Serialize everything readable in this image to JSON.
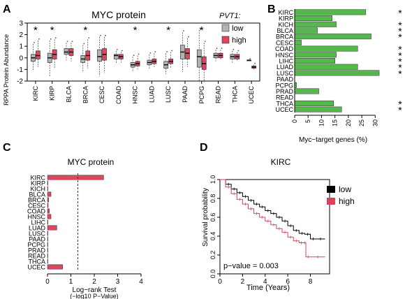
{
  "colors": {
    "low": "#b3b3b3",
    "high": "#d9485f",
    "green": "#55b84c",
    "black": "#000000",
    "red": "#d6455e"
  },
  "chart_data": [
    {
      "panel": "A",
      "type": "box",
      "title": "MYC protein",
      "ylabel": "RPPA Protein Abundance",
      "ylim": [
        -2,
        3
      ],
      "yticks": [
        "-2",
        "-1",
        "0",
        "1",
        "2",
        "3"
      ],
      "legend_title": "PVT1:",
      "legend": [
        "low",
        "high"
      ],
      "categories": [
        "KIRC",
        "KIRP",
        "BLCA",
        "BRCA",
        "CESC",
        "COAD",
        "HNSC",
        "LUAD",
        "LUSC",
        "PAAD",
        "PCPG",
        "READ",
        "THCA",
        "UCEC"
      ],
      "significant": [
        true,
        true,
        false,
        true,
        false,
        false,
        true,
        false,
        true,
        false,
        true,
        false,
        false,
        false
      ],
      "star": "*",
      "series": [
        {
          "name": "low",
          "median": [
            0.0,
            0.0,
            0.5,
            -0.1,
            0.1,
            0.2,
            -0.6,
            -0.4,
            -0.6,
            0.5,
            0.1,
            0.2,
            0.1,
            -0.2
          ],
          "q1": [
            -0.3,
            -0.4,
            0.3,
            -0.4,
            -0.3,
            -0.1,
            -0.8,
            -0.6,
            -0.9,
            -0.1,
            -0.8,
            0.0,
            -0.1,
            -0.2
          ],
          "q3": [
            0.3,
            0.4,
            0.8,
            0.2,
            0.7,
            0.3,
            -0.4,
            -0.2,
            -0.3,
            1.1,
            0.7,
            0.4,
            0.3,
            -0.2
          ],
          "wlo": [
            -1.1,
            -1.6,
            -0.2,
            -1.2,
            -1.6,
            -0.5,
            -1.2,
            -1.0,
            -1.4,
            -1.2,
            -2.1,
            -0.3,
            -0.4,
            -0.2
          ],
          "whi": [
            1.2,
            1.5,
            1.3,
            1.1,
            1.8,
            0.6,
            0.1,
            0.3,
            0.4,
            2.2,
            2.4,
            0.7,
            0.6,
            -0.2
          ]
        },
        {
          "name": "high",
          "median": [
            0.2,
            0.3,
            0.5,
            0.2,
            0.3,
            0.1,
            -0.5,
            -0.3,
            -0.3,
            0.4,
            -0.5,
            0.2,
            0.1,
            -0.8
          ],
          "q1": [
            -0.1,
            -0.1,
            0.2,
            -0.2,
            -0.2,
            -0.1,
            -0.7,
            -0.5,
            -0.5,
            -0.1,
            -1.0,
            0.0,
            -0.1,
            -0.9
          ],
          "q3": [
            0.6,
            0.7,
            0.8,
            0.6,
            0.8,
            0.3,
            -0.3,
            -0.1,
            -0.1,
            0.8,
            0.1,
            0.4,
            0.3,
            -0.7
          ],
          "wlo": [
            -0.8,
            -0.9,
            -0.3,
            -0.9,
            -1.3,
            -0.4,
            -1.0,
            -0.8,
            -0.9,
            -0.8,
            -2.1,
            -0.2,
            -0.3,
            -1.0
          ],
          "whi": [
            1.5,
            1.6,
            1.3,
            1.6,
            1.8,
            0.5,
            0.2,
            0.4,
            0.5,
            1.7,
            1.3,
            0.7,
            0.5,
            -0.6
          ]
        }
      ]
    },
    {
      "panel": "B",
      "type": "bar",
      "orientation": "horizontal",
      "xlabel": "Myc−target genes (%)",
      "xlim": [
        0,
        32
      ],
      "xticks": [
        "0",
        "5",
        "10",
        "15",
        "20",
        "25",
        "30"
      ],
      "categories": [
        "KIRC",
        "KIRP",
        "KICH",
        "BLCA",
        "BRCA",
        "CESC",
        "COAD",
        "HNSC",
        "LIHC",
        "LUAD",
        "LUSC",
        "PAAD",
        "PCPG",
        "PRAD",
        "READ",
        "THCA",
        "UCEC"
      ],
      "values": [
        26.5,
        14,
        15.5,
        8.5,
        28.5,
        2.5,
        23.5,
        15.5,
        15,
        23.5,
        31.5,
        0,
        0.7,
        9,
        0,
        14.5,
        17.5
      ],
      "significant": [
        true,
        false,
        true,
        true,
        true,
        false,
        true,
        true,
        true,
        true,
        true,
        false,
        false,
        false,
        false,
        true,
        true
      ],
      "star": "*"
    },
    {
      "panel": "C",
      "type": "bar",
      "orientation": "horizontal",
      "title": "MYC protein",
      "xlabel": "Log−rank Test",
      "xlabel2": "(−log10 P−Value)",
      "xlim": [
        0,
        4
      ],
      "xticks": [
        "0",
        "1",
        "2",
        "3",
        "4"
      ],
      "threshold": 1.3,
      "categories": [
        "KIRC",
        "KIRP",
        "KICH",
        "BLCA",
        "BRCA",
        "CESC",
        "COAD",
        "HNSC",
        "LIHC",
        "LUAD",
        "LUSC",
        "PAAD",
        "PCPG",
        "PRAD",
        "READ",
        "THCA",
        "UCEC"
      ],
      "values": [
        2.4,
        0.02,
        0.01,
        0.15,
        0.05,
        0.03,
        0.08,
        0.15,
        0.02,
        0.4,
        0.02,
        0.01,
        0.01,
        0.01,
        0.01,
        0.01,
        0.65
      ]
    },
    {
      "panel": "D",
      "type": "line",
      "title": "KIRC",
      "xlabel": "Time (Years)",
      "ylabel": "Survival probability",
      "xlim": [
        0,
        9.7
      ],
      "ylim": [
        0,
        1.0
      ],
      "xticks": [
        "0",
        "2",
        "4",
        "6",
        "8"
      ],
      "yticks": [
        "0.0",
        "0.2",
        "0.4",
        "0.6",
        "0.8",
        "1.0"
      ],
      "annotation": "p−value = 0.003",
      "legend": [
        "low",
        "high"
      ],
      "series": [
        {
          "name": "low",
          "x": [
            0,
            0.5,
            1,
            1.5,
            2,
            2.5,
            3,
            3.5,
            4,
            4.5,
            5,
            5.5,
            6,
            6.5,
            7,
            7.5,
            8,
            8.5,
            9.3
          ],
          "y": [
            1.0,
            0.95,
            0.9,
            0.86,
            0.82,
            0.78,
            0.74,
            0.71,
            0.67,
            0.64,
            0.6,
            0.56,
            0.51,
            0.46,
            0.43,
            0.42,
            0.37,
            0.37,
            0.37
          ]
        },
        {
          "name": "high",
          "x": [
            0,
            0.5,
            1,
            1.5,
            2,
            2.5,
            3,
            3.5,
            4,
            4.5,
            5,
            5.5,
            6,
            6.5,
            7,
            7.4,
            7.6,
            8,
            9.3
          ],
          "y": [
            1.0,
            0.92,
            0.85,
            0.79,
            0.74,
            0.69,
            0.64,
            0.6,
            0.56,
            0.52,
            0.48,
            0.44,
            0.39,
            0.35,
            0.33,
            0.33,
            0.18,
            0.18,
            0.18
          ]
        }
      ]
    }
  ],
  "panel_letters": [
    "A",
    "B",
    "C",
    "D"
  ]
}
